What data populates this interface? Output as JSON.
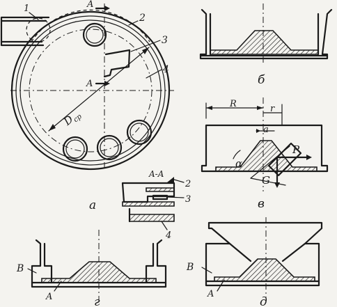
{
  "labels": {
    "section_marker": "A",
    "section_marker_lower": "A",
    "part_1": "1",
    "part_2": "2",
    "part_3": "3",
    "part_4": "4",
    "diameter": "D",
    "diameter_sub": "ср",
    "view_a": "а",
    "view_b": "б",
    "view_v": "в",
    "view_g": "г",
    "view_d": "д",
    "section_title": "A-A",
    "section_part_2": "2",
    "section_part_3": "3",
    "section_part_4": "4",
    "dim_R": "R",
    "dim_r": "r",
    "dim_a": "a",
    "angle": "α",
    "force_P": "P",
    "force_G": "G",
    "label_B_g": "B",
    "label_A_g": "A",
    "label_B_d": "B",
    "label_A_d": "A"
  }
}
